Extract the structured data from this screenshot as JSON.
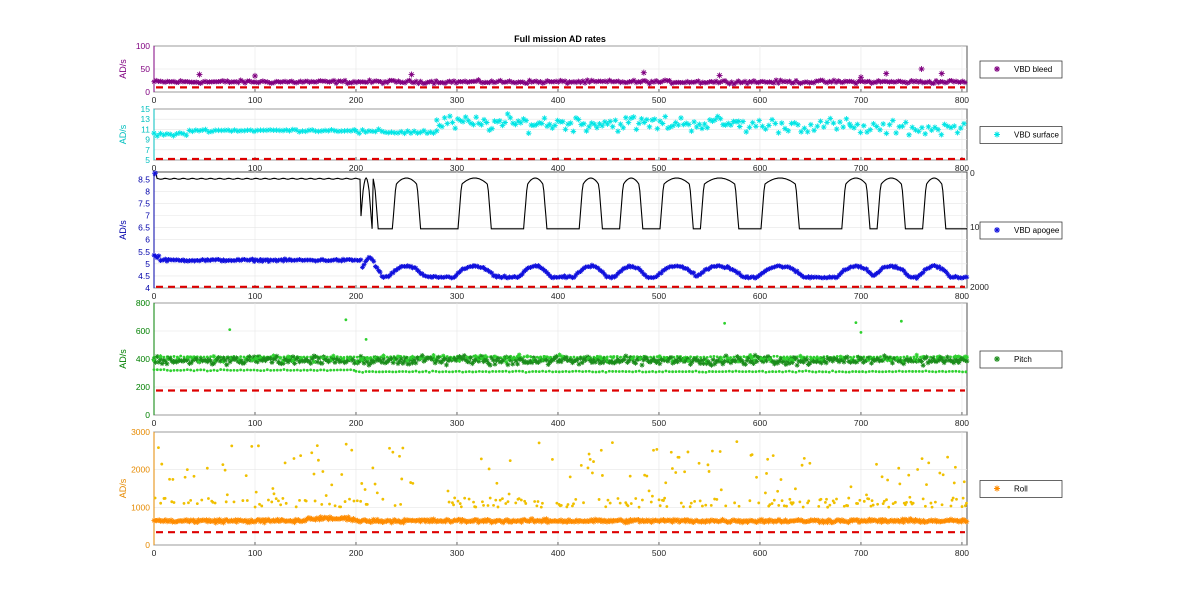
{
  "title": "Full mission AD rates",
  "chart_data": [
    {
      "type": "scatter",
      "ylabel": "AD/s",
      "xlim": [
        0,
        805
      ],
      "ylim": [
        0,
        100
      ],
      "yticks": [
        "0",
        "50",
        "100"
      ],
      "xticks": [
        "0",
        "100",
        "200",
        "300",
        "400",
        "500",
        "600",
        "700",
        "800"
      ],
      "axis_color": "#800080",
      "series": [
        {
          "name": "VBD bleed",
          "color": "#800080",
          "marker": "*",
          "base": 22,
          "noise": 3,
          "outliers": [
            [
              45,
              38
            ],
            [
              100,
              35
            ],
            [
              255,
              38
            ],
            [
              485,
              42
            ],
            [
              560,
              36
            ],
            [
              700,
              32
            ],
            [
              725,
              40
            ],
            [
              760,
              50
            ],
            [
              780,
              40
            ]
          ]
        }
      ],
      "threshold": {
        "value": 10,
        "color": "#dd0000"
      },
      "legend": "right"
    },
    {
      "type": "scatter",
      "ylabel": "AD/s",
      "xlim": [
        0,
        805
      ],
      "ylim": [
        5,
        15
      ],
      "yticks": [
        "5",
        "7",
        "9",
        "11",
        "13",
        "15"
      ],
      "xticks": [
        "0",
        "100",
        "200",
        "300",
        "400",
        "500",
        "600",
        "700",
        "800"
      ],
      "axis_color": "#00bfbf",
      "series": [
        {
          "name": "VBD surface",
          "color": "#00e5e5",
          "marker": "*",
          "segments": [
            [
              0,
              35,
              10,
              0.3
            ],
            [
              35,
              200,
              10.8,
              0.2
            ],
            [
              200,
              280,
              10.5,
              0.4
            ],
            [
              280,
              580,
              12.2,
              1.3
            ],
            [
              580,
              690,
              11.8,
              1.2
            ],
            [
              690,
              805,
              11.2,
              1.2
            ]
          ]
        }
      ],
      "threshold": {
        "value": 5.2,
        "color": "#dd0000"
      },
      "legend": "right"
    },
    {
      "type": "line+scatter",
      "ylabel": "AD/s",
      "xlim": [
        0,
        805
      ],
      "ylim": [
        4,
        8.8
      ],
      "yticks": [
        "4",
        "4.5",
        "5",
        "5.5",
        "6",
        "6.5",
        "7",
        "7.5",
        "8",
        "8.5"
      ],
      "xticks": [
        "0",
        "100",
        "200",
        "300",
        "400",
        "500",
        "600",
        "700",
        "800"
      ],
      "right_yticks": [
        "0",
        "10",
        "2000"
      ],
      "axis_color": "#0000aa",
      "series": [
        {
          "name": "VBD apogee",
          "color": "#1010dd",
          "marker": "*",
          "base_before": 5.15,
          "base_after": 4.45,
          "bump": 0.45
        },
        {
          "color": "#000000",
          "marker": "line",
          "level_before": 8.52,
          "low": 6.45,
          "high": 8.55
        }
      ],
      "pulses": [
        [
          208,
          212
        ],
        [
          215,
          218
        ],
        [
          240,
          260
        ],
        [
          305,
          330
        ],
        [
          370,
          385
        ],
        [
          425,
          440
        ],
        [
          465,
          480
        ],
        [
          505,
          530
        ],
        [
          545,
          575
        ],
        [
          605,
          635
        ],
        [
          685,
          705
        ],
        [
          720,
          740
        ],
        [
          765,
          780
        ]
      ],
      "threshold": {
        "value": 4.05,
        "color": "#dd0000"
      },
      "legend": "right"
    },
    {
      "type": "scatter",
      "ylabel": "AD/s",
      "xlim": [
        0,
        805
      ],
      "ylim": [
        0,
        800
      ],
      "yticks": [
        "0",
        "200",
        "400",
        "600",
        "800"
      ],
      "xticks": [
        "0",
        "100",
        "200",
        "300",
        "400",
        "500",
        "600",
        "700",
        "800"
      ],
      "axis_color": "#008000",
      "series": [
        {
          "name": "Pitch",
          "color": "#1a8c1a",
          "marker": "*",
          "base": 390,
          "noise": 25,
          "outliers": [
            [
              75,
              610
            ],
            [
              190,
              680
            ],
            [
              210,
              540
            ],
            [
              565,
              655
            ],
            [
              695,
              660
            ],
            [
              700,
              590
            ],
            [
              740,
              670
            ]
          ]
        },
        {
          "color": "#2ed12e",
          "marker": ".",
          "bands": [
            [
              0,
              200,
              320
            ],
            [
              0,
              805,
              415
            ],
            [
              200,
              805,
              310
            ]
          ]
        }
      ],
      "threshold": {
        "value": 175,
        "color": "#dd0000"
      },
      "legend": "right"
    },
    {
      "type": "scatter",
      "ylabel": "AD/s",
      "xlim": [
        0,
        805
      ],
      "ylim": [
        0,
        3000
      ],
      "yticks": [
        "0",
        "1000",
        "2000",
        "3000"
      ],
      "xticks": [
        "0",
        "100",
        "200",
        "300",
        "400",
        "500",
        "600",
        "700",
        "800"
      ],
      "axis_color": "#e68a00",
      "series": [
        {
          "name": "Roll",
          "color": "#ff8c00",
          "marker": "*",
          "base": 640,
          "noise": 40
        },
        {
          "color": "#f0c000",
          "marker": ".",
          "clusters": [
            [
              0,
              260,
              1150,
              2700
            ],
            [
              290,
              580,
              1000,
              2750
            ],
            [
              590,
              805,
              1100,
              2400
            ]
          ]
        }
      ],
      "threshold": {
        "value": 340,
        "color": "#dd0000"
      },
      "legend": "right"
    }
  ]
}
